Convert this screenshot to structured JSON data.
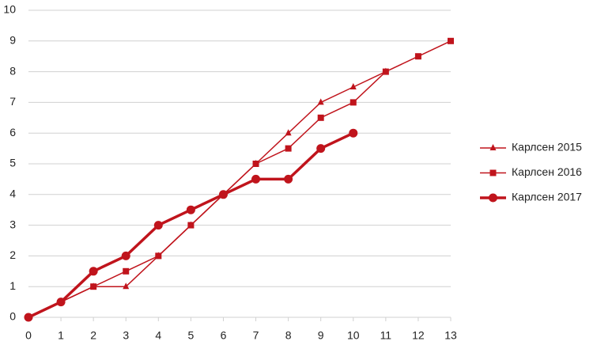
{
  "chart_data": {
    "type": "line",
    "x": [
      0,
      1,
      2,
      3,
      4,
      5,
      6,
      7,
      8,
      9,
      10,
      11,
      12,
      13
    ],
    "series": [
      {
        "name": "Карлсен 2015",
        "color": "#c0141c",
        "marker": "triangle",
        "line_width": 1.5,
        "values": [
          0,
          0.5,
          1,
          1,
          2,
          3,
          4,
          5,
          6,
          7,
          7.5,
          8,
          null,
          null
        ]
      },
      {
        "name": "Карлсен 2016",
        "color": "#c0141c",
        "marker": "square",
        "line_width": 1.5,
        "values": [
          0,
          0.5,
          1,
          1.5,
          2,
          3,
          4,
          5,
          5.5,
          6.5,
          7,
          8,
          8.5,
          9
        ]
      },
      {
        "name": "Карлсен 2017",
        "color": "#c0141c",
        "marker": "circle",
        "line_width": 3.5,
        "values": [
          0,
          0.5,
          1.5,
          2,
          3,
          3.5,
          4,
          4.5,
          4.5,
          5.5,
          6,
          null,
          null,
          null
        ]
      }
    ],
    "xlim": [
      0,
      13
    ],
    "xticks": [
      0,
      1,
      2,
      3,
      4,
      5,
      6,
      7,
      8,
      9,
      10,
      11,
      12,
      13
    ],
    "ylim": [
      0,
      10
    ],
    "yticks": [
      0,
      1,
      2,
      3,
      4,
      5,
      6,
      7,
      8,
      9,
      10
    ],
    "grid": true,
    "legend": "right"
  }
}
